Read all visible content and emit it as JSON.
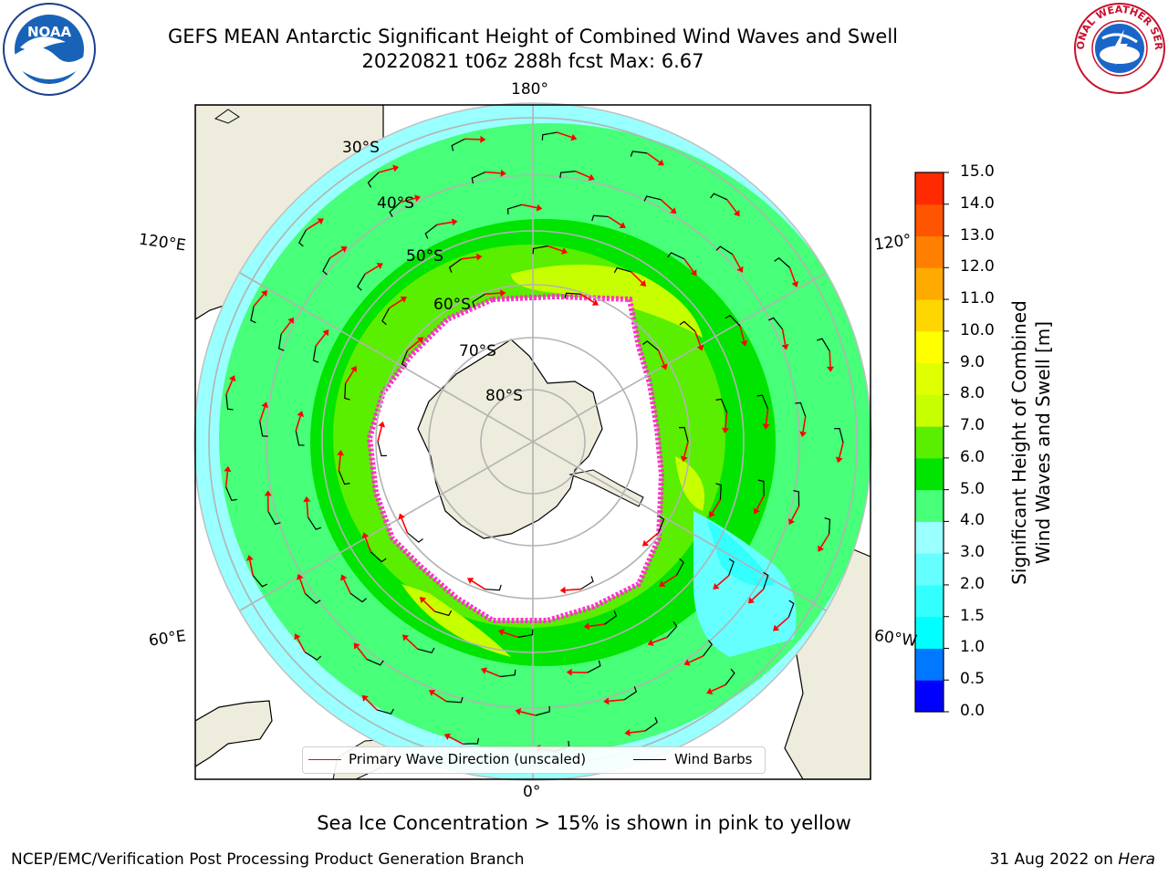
{
  "header": {
    "title_line1": "GEFS MEAN Antarctic Significant Height of Combined Wind Waves and Swell",
    "title_line2": "20220821 t06z 288h fcst   Max: 6.67"
  },
  "logos": {
    "left": {
      "icon": "noaa-logo",
      "text": "NOAA"
    },
    "right": {
      "icon": "nws-logo",
      "text": "NATIONAL WEATHER SERVICE"
    }
  },
  "map": {
    "projection": "south-polar-stereographic",
    "longitude_labels": {
      "top": "180°",
      "left_upper": "120°E",
      "right_upper": "120°",
      "left_lower": "60°E",
      "right_lower": "60°W",
      "bottom": "0°"
    },
    "latitude_labels": [
      "30°S",
      "40°S",
      "50°S",
      "60°S",
      "70°S",
      "80°S"
    ],
    "colors": {
      "land": "#eeecdc",
      "ice": "#ffffff",
      "wave_low": "#99ffff",
      "wave_mid": "#47ff78",
      "wave_high": "#00e400",
      "wave_peak": "#c8ff00",
      "ice_edge": "#ff33cc"
    }
  },
  "legend": {
    "items": [
      {
        "label": "Primary Wave Direction (unscaled)",
        "color": "#ff0000"
      },
      {
        "label": "Wind Barbs",
        "color": "#000000"
      }
    ]
  },
  "colorbar": {
    "title_line1": "Significant Height of Combined",
    "title_line2": "Wind Waves and Swell [m]",
    "ticks": [
      "0.0",
      "0.5",
      "1.0",
      "1.5",
      "2.0",
      "3.0",
      "4.0",
      "5.0",
      "6.0",
      "7.0",
      "8.0",
      "9.0",
      "10.0",
      "11.0",
      "12.0",
      "13.0",
      "14.0",
      "15.0"
    ],
    "colors": [
      "#0000ff",
      "#0078ff",
      "#00ffff",
      "#33ffff",
      "#66ffff",
      "#99ffff",
      "#47ff78",
      "#00e400",
      "#5aee00",
      "#c8ff00",
      "#e0ff00",
      "#ffff00",
      "#ffd700",
      "#ffaa00",
      "#ff8000",
      "#ff5500",
      "#ff2a00",
      "#ff0000"
    ]
  },
  "notes": {
    "sea_ice": "Sea Ice Concentration > 15% is shown in pink to yellow",
    "footer_left": "NCEP/EMC/Verification Post Processing Product Generation Branch",
    "footer_right_prefix": "31 Aug 2022 on ",
    "footer_right_system": "Hera"
  }
}
